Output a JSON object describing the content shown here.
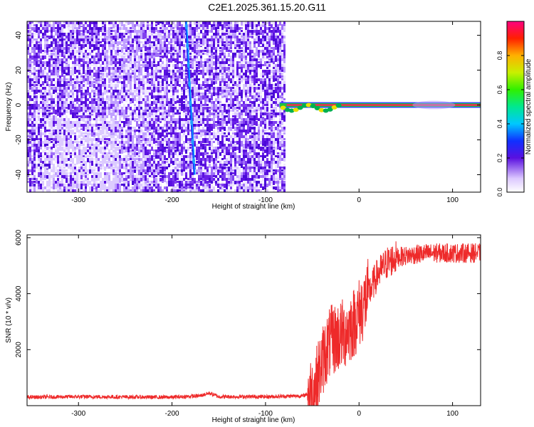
{
  "figure_title": "C2E1.2025.361.15.20.G11",
  "colors": {
    "snr_line": "#ee2a2a",
    "spectrogram_base": "#5a10e0",
    "axes": "#000000"
  },
  "chart_data": [
    {
      "type": "heatmap",
      "title": "C2E1.2025.361.15.20.G11",
      "xlabel": "Height of straight line (km)",
      "ylabel": "Frequency (Hz)",
      "xlim": [
        -355,
        130
      ],
      "ylim": [
        -50,
        48
      ],
      "xticks": [
        -300,
        -200,
        -100,
        0,
        100
      ],
      "yticks": [
        -40,
        -20,
        0,
        20,
        40
      ],
      "colorbar": {
        "label": "Normalized spectral amplitude",
        "range": [
          0,
          1
        ],
        "ticks": [
          0.0,
          0.2,
          0.4,
          0.6,
          0.8
        ],
        "tick_labels": [
          "0.0",
          "0.2",
          "0.4",
          "0.6",
          "0.8"
        ]
      },
      "features": {
        "noise_region_x": [
          -355,
          -80
        ],
        "empty_region_x": [
          -80,
          130
        ],
        "tone_frequency_hz": 0,
        "tone_start_km": -85,
        "streak_start": [
          -185,
          48
        ],
        "streak_end": [
          -176,
          -40
        ]
      }
    },
    {
      "type": "line",
      "xlabel": "Height of straight line (km)",
      "ylabel": "SNR (10 * v/v)",
      "xlim": [
        -355,
        130
      ],
      "ylim": [
        0,
        6100
      ],
      "xticks": [
        -300,
        -200,
        -100,
        0,
        100
      ],
      "yticks": [
        2000,
        4000,
        6000
      ],
      "series": [
        {
          "name": "SNR",
          "x": [
            -355,
            -300,
            -250,
            -200,
            -170,
            -160,
            -150,
            -100,
            -60,
            -50,
            -45,
            -40,
            -35,
            -30,
            -25,
            -20,
            -15,
            -10,
            -5,
            0,
            5,
            10,
            20,
            30,
            40,
            50,
            60,
            80,
            100,
            130
          ],
          "y": [
            300,
            320,
            310,
            300,
            350,
            450,
            320,
            320,
            350,
            500,
            900,
            1500,
            2000,
            2300,
            2400,
            2500,
            2600,
            2800,
            3000,
            3300,
            3600,
            4000,
            4700,
            5100,
            5300,
            5350,
            5400,
            5450,
            5450,
            5450
          ]
        }
      ]
    }
  ]
}
